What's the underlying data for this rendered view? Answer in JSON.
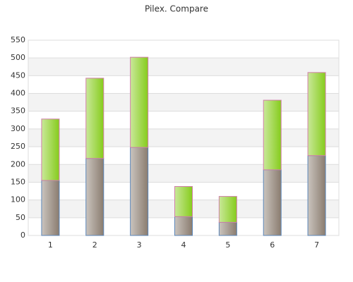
{
  "chart_data": {
    "type": "stacked-bar",
    "title": "Pilex. Compare",
    "categories": [
      "1",
      "2",
      "3",
      "4",
      "5",
      "6",
      "7"
    ],
    "series": [
      {
        "color": "#8a7c6f",
        "border": "#5b86b8",
        "values": [
          155,
          217,
          248,
          53,
          37,
          185,
          225
        ]
      },
      {
        "color": "#86cc1c",
        "border": "#d07fa8",
        "values": [
          173,
          226,
          254,
          85,
          73,
          196,
          234
        ]
      }
    ],
    "ylim": [
      0,
      550
    ],
    "yticks": [
      0,
      50,
      100,
      150,
      200,
      250,
      300,
      350,
      400,
      450,
      500,
      550
    ],
    "grid": true
  }
}
